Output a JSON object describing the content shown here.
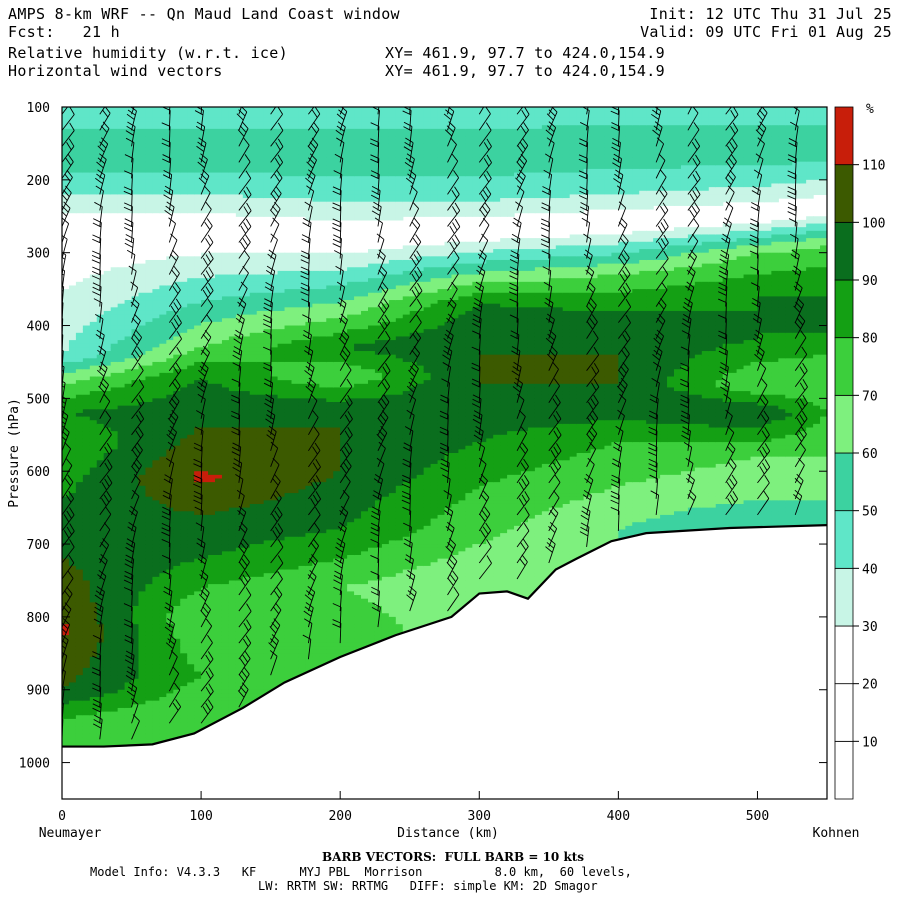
{
  "header": {
    "title": "AMPS 8-km WRF -- Qn Maud Land Coast window",
    "fcst": "Fcst:   21 h",
    "field1": "Relative humidity (w.r.t. ice)",
    "field2": "Horizontal wind vectors",
    "xy1": "XY= 461.9, 97.7 to 424.0,154.9",
    "xy2": "XY= 461.9, 97.7 to 424.0,154.9",
    "init": "Init: 12 UTC Thu 31 Jul 25",
    "valid": "Valid: 09 UTC Fri 01 Aug 25"
  },
  "footer": {
    "barb_note": "BARB VECTORS:  FULL BARB = 10 kts",
    "model_line1": "Model Info: V4.3.3   KF      MYJ PBL  Morrison          8.0 km,  60 levels,",
    "model_line2": "LW: RRTM SW: RRTMG   DIFF: simple KM: 2D Smagor"
  },
  "chart_data": {
    "type": "heatmap",
    "title": "Relative humidity (w.r.t. ice)",
    "xlabel": "Distance (km)",
    "ylabel": "Pressure (hPa)",
    "x_left_label": "Neumayer",
    "x_right_label": "Kohnen",
    "xlim": [
      0,
      550
    ],
    "ylim": [
      1050,
      100
    ],
    "x_ticks": [
      0,
      100,
      200,
      300,
      400,
      500
    ],
    "y_ticks": [
      100,
      200,
      300,
      400,
      500,
      600,
      700,
      800,
      900,
      1000
    ],
    "colorbar": {
      "unit": "%",
      "levels": [
        10,
        20,
        30,
        40,
        50,
        60,
        70,
        80,
        90,
        100,
        110
      ],
      "colors": [
        "#ffffff",
        "#ffffff",
        "#ffffff",
        "#c8f5e6",
        "#5fe6c8",
        "#3cd2a0",
        "#7ef07e",
        "#3ccf3c",
        "#14a014",
        "#0a6e1e",
        "#3c5a00",
        "#c81e0a"
      ]
    },
    "terrain_surface_hPa": [
      {
        "x": 0,
        "p": 978
      },
      {
        "x": 30,
        "p": 978
      },
      {
        "x": 65,
        "p": 975
      },
      {
        "x": 95,
        "p": 960
      },
      {
        "x": 130,
        "p": 925
      },
      {
        "x": 160,
        "p": 890
      },
      {
        "x": 200,
        "p": 855
      },
      {
        "x": 240,
        "p": 825
      },
      {
        "x": 280,
        "p": 800
      },
      {
        "x": 300,
        "p": 768
      },
      {
        "x": 320,
        "p": 765
      },
      {
        "x": 335,
        "p": 775
      },
      {
        "x": 355,
        "p": 735
      },
      {
        "x": 370,
        "p": 720
      },
      {
        "x": 395,
        "p": 696
      },
      {
        "x": 420,
        "p": 685
      },
      {
        "x": 480,
        "p": 678
      },
      {
        "x": 550,
        "p": 674
      }
    ],
    "rh_field_profiles": [
      {
        "x": 0,
        "levels": [
          [
            100,
            40
          ],
          [
            160,
            60
          ],
          [
            220,
            40
          ],
          [
            270,
            20
          ],
          [
            440,
            40
          ],
          [
            480,
            70
          ],
          [
            520,
            90
          ],
          [
            560,
            80
          ],
          [
            640,
            90
          ],
          [
            720,
            100
          ],
          [
            820,
            112
          ],
          [
            900,
            100
          ],
          [
            960,
            70
          ]
        ]
      },
      {
        "x": 100,
        "levels": [
          [
            100,
            40
          ],
          [
            160,
            60
          ],
          [
            220,
            40
          ],
          [
            270,
            20
          ],
          [
            430,
            70
          ],
          [
            470,
            90
          ],
          [
            540,
            100
          ],
          [
            610,
            112
          ],
          [
            660,
            100
          ],
          [
            720,
            90
          ],
          [
            800,
            70
          ],
          [
            880,
            80
          ],
          [
            930,
            70
          ]
        ]
      },
      {
        "x": 200,
        "levels": [
          [
            100,
            40
          ],
          [
            160,
            60
          ],
          [
            230,
            40
          ],
          [
            280,
            20
          ],
          [
            390,
            70
          ],
          [
            430,
            90
          ],
          [
            470,
            70
          ],
          [
            520,
            100
          ],
          [
            600,
            100
          ],
          [
            680,
            90
          ],
          [
            760,
            70
          ],
          [
            830,
            80
          ]
        ]
      },
      {
        "x": 300,
        "levels": [
          [
            100,
            40
          ],
          [
            160,
            60
          ],
          [
            230,
            40
          ],
          [
            270,
            20
          ],
          [
            370,
            90
          ],
          [
            420,
            100
          ],
          [
            480,
            100
          ],
          [
            560,
            90
          ],
          [
            620,
            80
          ],
          [
            700,
            70
          ],
          [
            760,
            60
          ]
        ]
      },
      {
        "x": 400,
        "levels": [
          [
            100,
            40
          ],
          [
            150,
            60
          ],
          [
            220,
            40
          ],
          [
            260,
            20
          ],
          [
            330,
            70
          ],
          [
            380,
            90
          ],
          [
            440,
            100
          ],
          [
            500,
            100
          ],
          [
            560,
            80
          ],
          [
            620,
            70
          ],
          [
            680,
            60
          ]
        ]
      },
      {
        "x": 500,
        "levels": [
          [
            100,
            40
          ],
          [
            150,
            60
          ],
          [
            210,
            40
          ],
          [
            250,
            20
          ],
          [
            300,
            70
          ],
          [
            360,
            90
          ],
          [
            420,
            90
          ],
          [
            480,
            70
          ],
          [
            520,
            100
          ],
          [
            580,
            70
          ],
          [
            640,
            60
          ],
          [
            670,
            50
          ]
        ]
      },
      {
        "x": 550,
        "levels": [
          [
            100,
            40
          ],
          [
            150,
            60
          ],
          [
            200,
            40
          ],
          [
            240,
            20
          ],
          [
            290,
            70
          ],
          [
            350,
            90
          ],
          [
            410,
            90
          ],
          [
            470,
            70
          ],
          [
            520,
            80
          ],
          [
            580,
            70
          ],
          [
            640,
            60
          ],
          [
            670,
            50
          ]
        ]
      }
    ],
    "wind_barb_columns_km": [
      0,
      25,
      50,
      75,
      100,
      125,
      150,
      175,
      200,
      225,
      250,
      275,
      300,
      325,
      350,
      375,
      400,
      425,
      450,
      475,
      500,
      525
    ],
    "wind_barb_units": "kts"
  }
}
